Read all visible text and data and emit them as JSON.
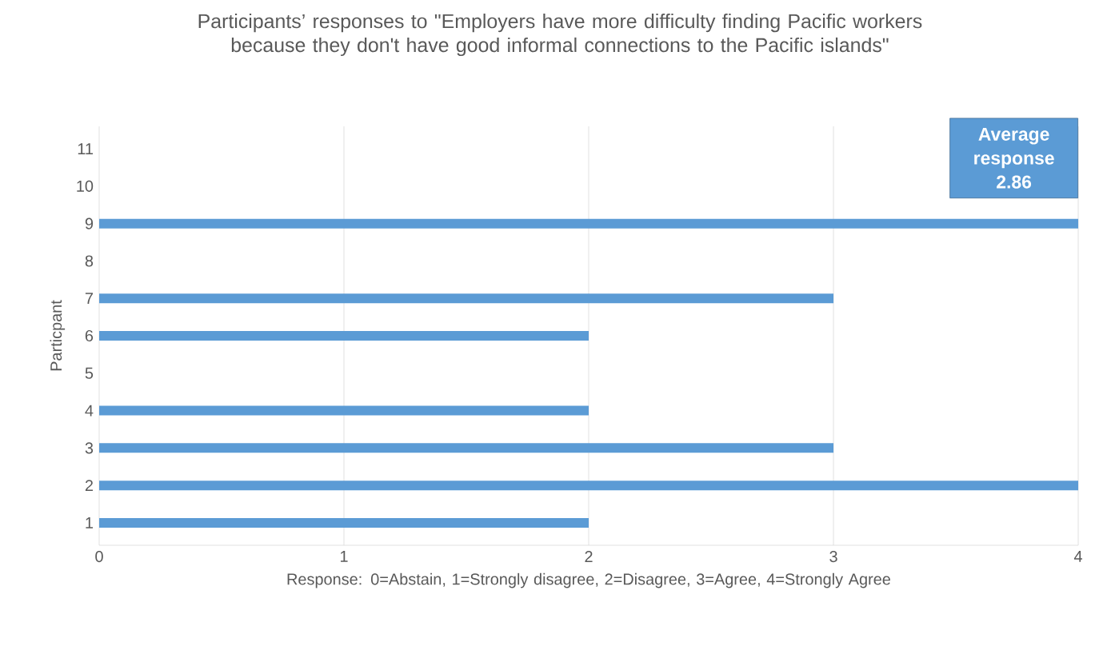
{
  "chart_data": {
    "type": "bar",
    "orientation": "horizontal",
    "title": "Participants’ responses to \"Employers have more difficulty finding Pacific workers because they don't have good informal connections to the Pacific islands\"",
    "xlabel": "Response: 0=Abstain, 1=Strongly disagree, 2=Disagree, 3=Agree, 4=Strongly Agree",
    "ylabel": "Particpant",
    "categories": [
      "11",
      "10",
      "9",
      "8",
      "7",
      "6",
      "5",
      "4",
      "3",
      "2",
      "1"
    ],
    "values": [
      0,
      0,
      4,
      0,
      3,
      2,
      0,
      2,
      3,
      4,
      2
    ],
    "color": "#5b9bd5",
    "xlim": [
      0,
      4
    ],
    "xticks": [
      0,
      1,
      2,
      3,
      4
    ],
    "grid": "x",
    "annotations": [
      "Average response 2.86"
    ]
  }
}
